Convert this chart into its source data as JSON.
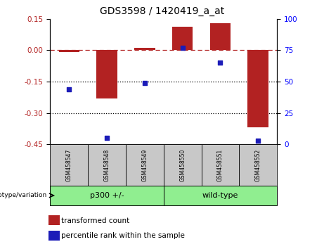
{
  "title": "GDS3598 / 1420419_a_at",
  "samples": [
    "GSM458547",
    "GSM458548",
    "GSM458549",
    "GSM458550",
    "GSM458551",
    "GSM458552"
  ],
  "transformed_count": [
    -0.01,
    -0.23,
    0.01,
    0.11,
    0.13,
    -0.37
  ],
  "percentile_rank": [
    44,
    5,
    49,
    77,
    65,
    3
  ],
  "left_ylim": [
    -0.45,
    0.15
  ],
  "left_yticks": [
    0.15,
    0.0,
    -0.15,
    -0.3,
    -0.45
  ],
  "right_ylim": [
    0,
    100
  ],
  "right_yticks": [
    100,
    75,
    50,
    25,
    0
  ],
  "bar_color": "#B22222",
  "dot_color": "#1C1CB8",
  "group_bar_color": "#90EE90",
  "group_outline_color": "#000000",
  "sample_box_color": "#C8C8C8",
  "legend_bar_label": "transformed count",
  "legend_dot_label": "percentile rank within the sample",
  "groups_info": [
    {
      "label": "p300 +/-",
      "start": 0,
      "end": 2
    },
    {
      "label": "wild-type",
      "start": 3,
      "end": 5
    }
  ]
}
